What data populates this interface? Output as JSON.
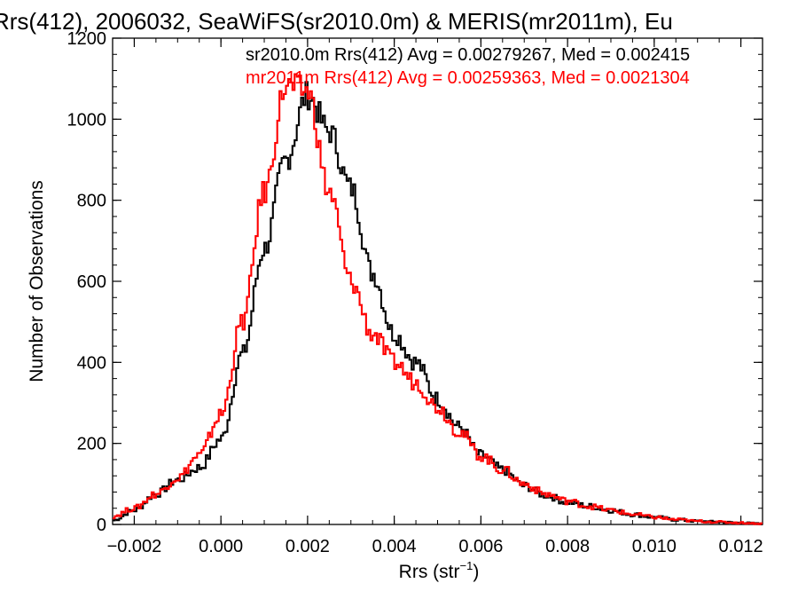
{
  "chart_data": {
    "type": "histogram-step",
    "title": "Rrs(412), 2006032, SeaWiFS(sr2010.0m) & MERIS(mr2011m), Eu",
    "xlabel": "Rrs (str",
    "xlabel_sup": "−1",
    "xlabel_close": ")",
    "ylabel": "Number of Observations",
    "xlim": [
      -0.0025,
      0.0125
    ],
    "ylim": [
      0,
      1200
    ],
    "xticks": [
      -0.002,
      0.0,
      0.002,
      0.004,
      0.006,
      0.008,
      0.01,
      0.012
    ],
    "xtick_labels": [
      "−0.002",
      "0.000",
      "0.002",
      "0.004",
      "0.006",
      "0.008",
      "0.010",
      "0.012"
    ],
    "yticks": [
      0,
      200,
      400,
      600,
      800,
      1000,
      1200
    ],
    "ytick_labels": [
      "0",
      "200",
      "400",
      "600",
      "800",
      "1000",
      "1200"
    ],
    "legend_placement": "top",
    "series": [
      {
        "name": "sr2010.0m",
        "legend": "sr2010.0m Rrs(412) Avg = 0.00279267, Med = 0.002415",
        "color": "#000000",
        "x": [
          -0.0025,
          -0.002,
          -0.0015,
          -0.001,
          -0.0005,
          0.0,
          0.0005,
          0.001,
          0.0015,
          0.002,
          0.0025,
          0.003,
          0.0035,
          0.004,
          0.0045,
          0.005,
          0.0055,
          0.006,
          0.0065,
          0.007,
          0.0075,
          0.008,
          0.0085,
          0.009,
          0.0095,
          0.01,
          0.0105,
          0.011,
          0.0115,
          0.012,
          0.0125
        ],
        "y": [
          10,
          35,
          75,
          110,
          140,
          210,
          420,
          680,
          900,
          1060,
          970,
          830,
          620,
          470,
          400,
          310,
          240,
          170,
          135,
          95,
          72,
          55,
          45,
          35,
          25,
          18,
          12,
          8,
          6,
          4,
          2
        ]
      },
      {
        "name": "mr2011m",
        "legend": "mr2011m Rrs(412) Avg = 0.00259363, Med = 0.0021304",
        "color": "#ff0000",
        "x": [
          -0.0025,
          -0.002,
          -0.0015,
          -0.001,
          -0.0005,
          0.0,
          0.0005,
          0.001,
          0.0015,
          0.002,
          0.0025,
          0.003,
          0.0035,
          0.004,
          0.0045,
          0.005,
          0.0055,
          0.006,
          0.0065,
          0.007,
          0.0075,
          0.008,
          0.0085,
          0.009,
          0.0095,
          0.01,
          0.0105,
          0.011,
          0.0115,
          0.012,
          0.0125
        ],
        "y": [
          20,
          40,
          75,
          115,
          170,
          270,
          500,
          820,
          1080,
          1070,
          820,
          600,
          470,
          400,
          350,
          290,
          230,
          170,
          135,
          100,
          75,
          58,
          45,
          35,
          25,
          18,
          12,
          8,
          6,
          4,
          2
        ]
      }
    ]
  }
}
